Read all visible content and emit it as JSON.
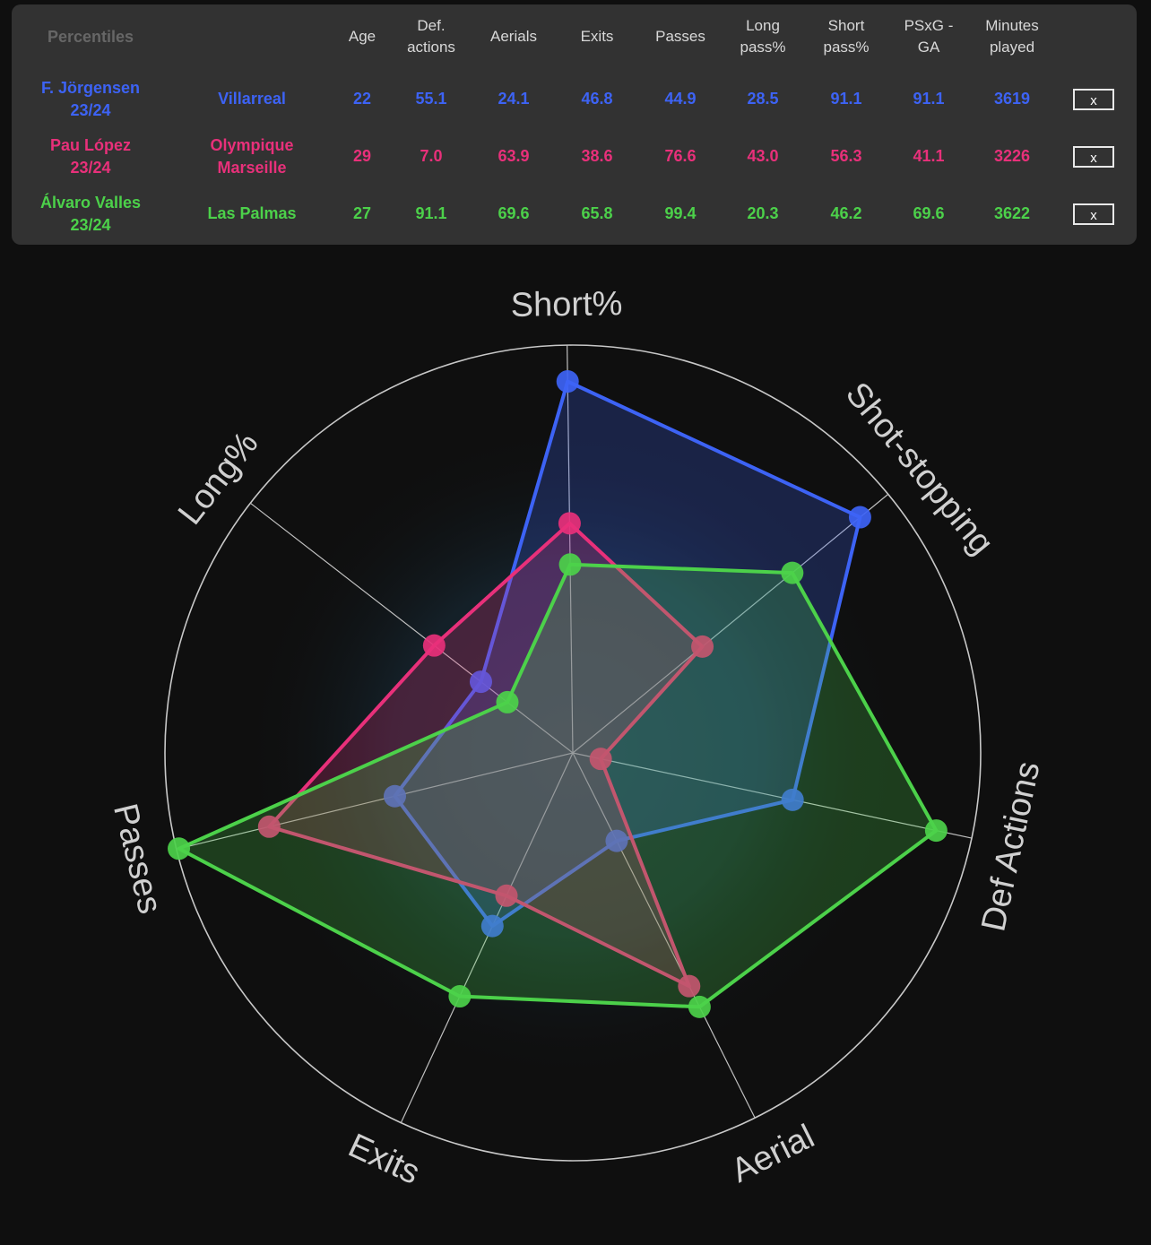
{
  "table": {
    "corner_label": "Percentiles",
    "columns": [
      "Age",
      "Def.\nactions",
      "Aerials",
      "Exits",
      "Passes",
      "Long\npass%",
      "Short\npass%",
      "PSxG -\nGA",
      "Minutes\nplayed"
    ],
    "remove_label": "x",
    "rows": [
      {
        "player": "F. Jörgensen\n23/24",
        "team": "Villarreal",
        "color": "#3d63f5",
        "values": [
          "22",
          "55.1",
          "24.1",
          "46.8",
          "44.9",
          "28.5",
          "91.1",
          "91.1",
          "3619"
        ]
      },
      {
        "player": "Pau López\n23/24",
        "team": "Olympique\nMarseille",
        "color": "#e8307a",
        "values": [
          "29",
          "7.0",
          "63.9",
          "38.6",
          "76.6",
          "43.0",
          "56.3",
          "41.1",
          "3226"
        ]
      },
      {
        "player": "Álvaro Valles\n23/24",
        "team": "Las Palmas",
        "color": "#4cd14a",
        "values": [
          "27",
          "91.1",
          "69.6",
          "65.8",
          "99.4",
          "20.3",
          "46.2",
          "69.6",
          "3622"
        ]
      }
    ]
  },
  "chart_data": {
    "type": "radar",
    "axes": [
      "Short%",
      "Shot-stopping",
      "Def Actions",
      "Aerial",
      "Exits",
      "Passes",
      "Long%"
    ],
    "range": [
      0,
      100
    ],
    "series": [
      {
        "name": "F. Jörgensen 23/24",
        "color": "#3d63f5",
        "values": [
          91.1,
          91.1,
          55.1,
          24.1,
          46.8,
          44.9,
          28.5
        ]
      },
      {
        "name": "Pau López 23/24",
        "color": "#e8307a",
        "values": [
          56.3,
          41.1,
          7.0,
          63.9,
          38.6,
          76.6,
          43.0
        ]
      },
      {
        "name": "Álvaro Valles 23/24",
        "color": "#4cd14a",
        "values": [
          46.2,
          69.6,
          91.1,
          69.6,
          65.8,
          99.4,
          20.3
        ]
      }
    ]
  }
}
